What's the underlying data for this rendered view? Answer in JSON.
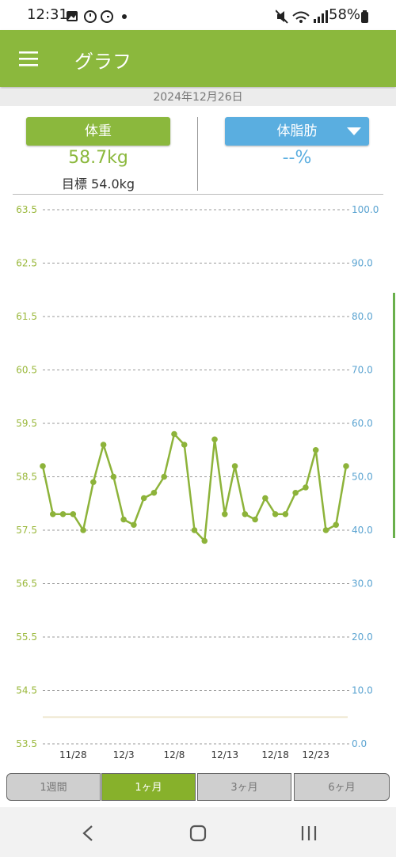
{
  "status_bar": {
    "time": "12:31",
    "battery": "58%"
  },
  "header": {
    "title": "グラフ"
  },
  "date": "2024年12月26日",
  "weight_panel": {
    "button": "体重",
    "value": "58.7kg",
    "goal": "目標 54.0kg"
  },
  "fat_panel": {
    "button": "体脂肪",
    "value": "--%"
  },
  "tabs": [
    "1週間",
    "1ヶ月",
    "3ヶ月",
    "6ヶ月"
  ],
  "chart_data": {
    "type": "line",
    "categories": [
      null,
      null,
      null,
      "11/28",
      null,
      null,
      null,
      null,
      "12/3",
      null,
      null,
      null,
      null,
      "12/8",
      null,
      null,
      null,
      null,
      "12/13",
      null,
      null,
      null,
      null,
      "12/18",
      null,
      null,
      null,
      "12/23",
      null,
      null,
      null
    ],
    "values": [
      58.7,
      57.8,
      57.8,
      57.8,
      57.5,
      58.4,
      59.1,
      58.5,
      57.7,
      57.6,
      58.1,
      58.2,
      58.5,
      59.3,
      59.1,
      57.5,
      57.3,
      59.2,
      57.8,
      58.7,
      57.8,
      57.7,
      58.1,
      57.8,
      57.8,
      58.2,
      58.3,
      59.0,
      57.5,
      57.6,
      58.7
    ],
    "color": "#8db33a",
    "goal_line": 54.0,
    "goal_line_color": "#efe8d2",
    "ylim": [
      53.5,
      63.5
    ],
    "yticks": [
      53.5,
      54.5,
      55.5,
      56.5,
      57.5,
      58.5,
      59.5,
      60.5,
      61.5,
      62.5,
      63.5
    ],
    "y2lim": [
      0,
      100
    ],
    "y2ticks": [
      {
        "value": 0,
        "label": "0.0"
      },
      {
        "value": 10,
        "label": "10.0"
      },
      {
        "value": 20,
        "label": "20.0"
      },
      {
        "value": 30,
        "label": "30.0"
      },
      {
        "value": 40,
        "label": "40.0"
      },
      {
        "value": 50,
        "label": "50.0"
      },
      {
        "value": 60,
        "label": "60.0"
      },
      {
        "value": 70,
        "label": "70.0"
      },
      {
        "value": 80,
        "label": "80.0"
      },
      {
        "value": 90,
        "label": "90.0"
      },
      {
        "value": 100,
        "label": "100.0"
      }
    ],
    "y_color": "#9ab83b",
    "y2_color": "#5aa3d1",
    "grid": true
  }
}
